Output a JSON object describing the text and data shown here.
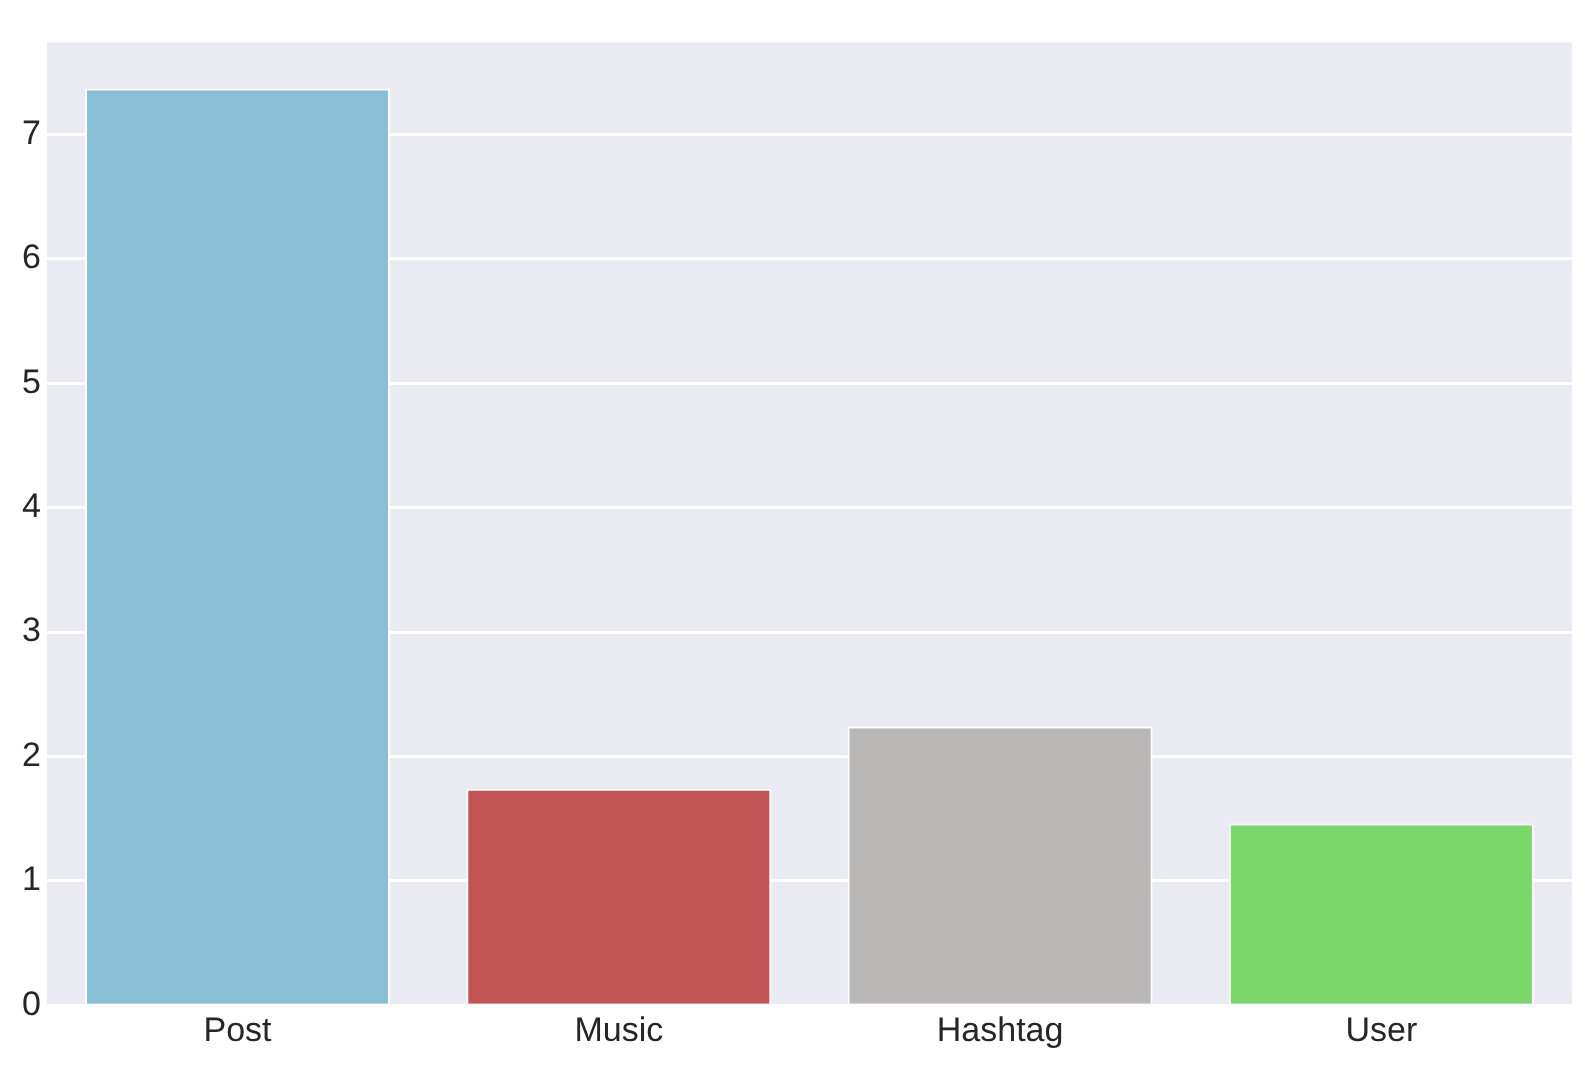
{
  "chart_data": {
    "type": "bar",
    "categories": [
      "Post",
      "Music",
      "Hashtag",
      "User"
    ],
    "values": [
      7.37,
      1.74,
      2.24,
      1.46
    ],
    "colors": [
      "#89bfd4",
      "#c25455",
      "#bab8b6",
      "#7bd66a"
    ],
    "ylim": [
      0,
      7.74
    ],
    "yticks": [
      0,
      1,
      2,
      3,
      4,
      5,
      6,
      7
    ],
    "grid": "y"
  }
}
